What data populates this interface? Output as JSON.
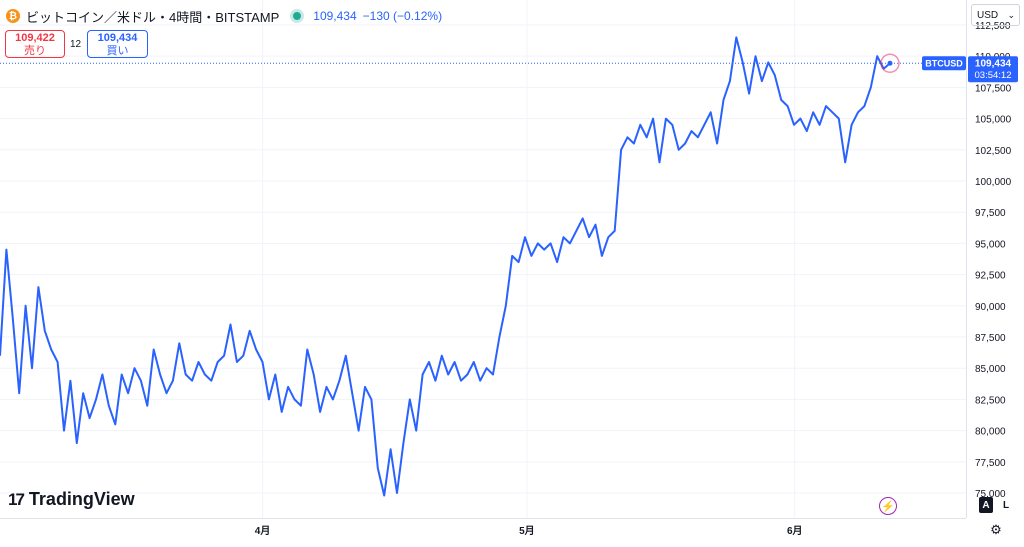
{
  "header": {
    "coin_icon": "bitcoin-icon",
    "coin_glyph": "₿",
    "symbol": "ビットコイン／米ドル・4時間・BITSTAMP",
    "price": "109,434",
    "change": "−130 (−0.12%)",
    "live_color": "#22ab94"
  },
  "trade": {
    "sell_price": "109,422",
    "sell_label": "売り",
    "spread": "12",
    "buy_price": "109,434",
    "buy_label": "買い"
  },
  "currency": {
    "label": "USD",
    "chevron": "⌄"
  },
  "brand": {
    "logo_mark": "17",
    "name": "TradingView"
  },
  "controls": {
    "auto_label": "A",
    "log_label": "L",
    "bolt_glyph": "⚡",
    "gear_glyph": "⚙"
  },
  "colors": {
    "line": "#2962ff",
    "label_bg": "#2962ff",
    "sell": "#f23645",
    "buy": "#2962ff",
    "bolt": "#9c27b0"
  },
  "chart_data": {
    "type": "line",
    "series": [
      {
        "values": [
          86000,
          94500,
          89000,
          83000,
          90000,
          85000,
          91500,
          88000,
          86500,
          85500,
          80000,
          84000,
          79000,
          83000,
          81000,
          82500,
          84500,
          82000,
          80500,
          84500,
          83000,
          85000,
          84000,
          82000,
          86500,
          84500,
          83000,
          84000,
          87000,
          84500,
          84000,
          85500,
          84500,
          84000,
          85500,
          86000,
          88500,
          85500,
          86000,
          88000,
          86500,
          85500,
          82500,
          84500,
          81500,
          83500,
          82500,
          82000,
          86500,
          84500,
          81500,
          83500,
          82500,
          84000,
          86000,
          83000,
          80000,
          83500,
          82500,
          77000,
          74800,
          78500,
          75000,
          79000,
          82500,
          80000,
          84500,
          85500,
          84000,
          86000,
          84500,
          85500,
          84000,
          84500,
          85500,
          84000,
          85000,
          84500,
          87500,
          90000,
          94000,
          93500,
          95500,
          94000,
          95000,
          94500,
          95000,
          93500,
          95500,
          95000,
          96000,
          97000,
          95500,
          96500,
          94000,
          95500,
          96000,
          102500,
          103500,
          103000,
          104500,
          103500,
          105000,
          101500,
          105000,
          104500,
          102500,
          103000,
          104000,
          103500,
          104500,
          105500,
          103000,
          106500,
          108000,
          111500,
          109500,
          107000,
          110000,
          108000,
          109500,
          108500,
          106500,
          106000,
          104500,
          105000,
          104000,
          105500,
          104500,
          106000,
          105500,
          105000,
          101500,
          104500,
          105500,
          106000,
          107500,
          110000,
          109000,
          109434
        ]
      }
    ],
    "last_value": 109434,
    "x_ticks": [
      "4月",
      "5月",
      "6月"
    ],
    "y_ticks": [
      "112,500",
      "110,000",
      "107,500",
      "105,000",
      "102,500",
      "100,000",
      "97,500",
      "95,000",
      "92,500",
      "90,000",
      "87,500",
      "85,000",
      "82,500",
      "80,000",
      "77,500",
      "75,000"
    ],
    "ylim": [
      73000,
      114500
    ],
    "price_label": "BTCUSD",
    "price_value": "109,434",
    "countdown": "03:54:12",
    "grid": true
  }
}
